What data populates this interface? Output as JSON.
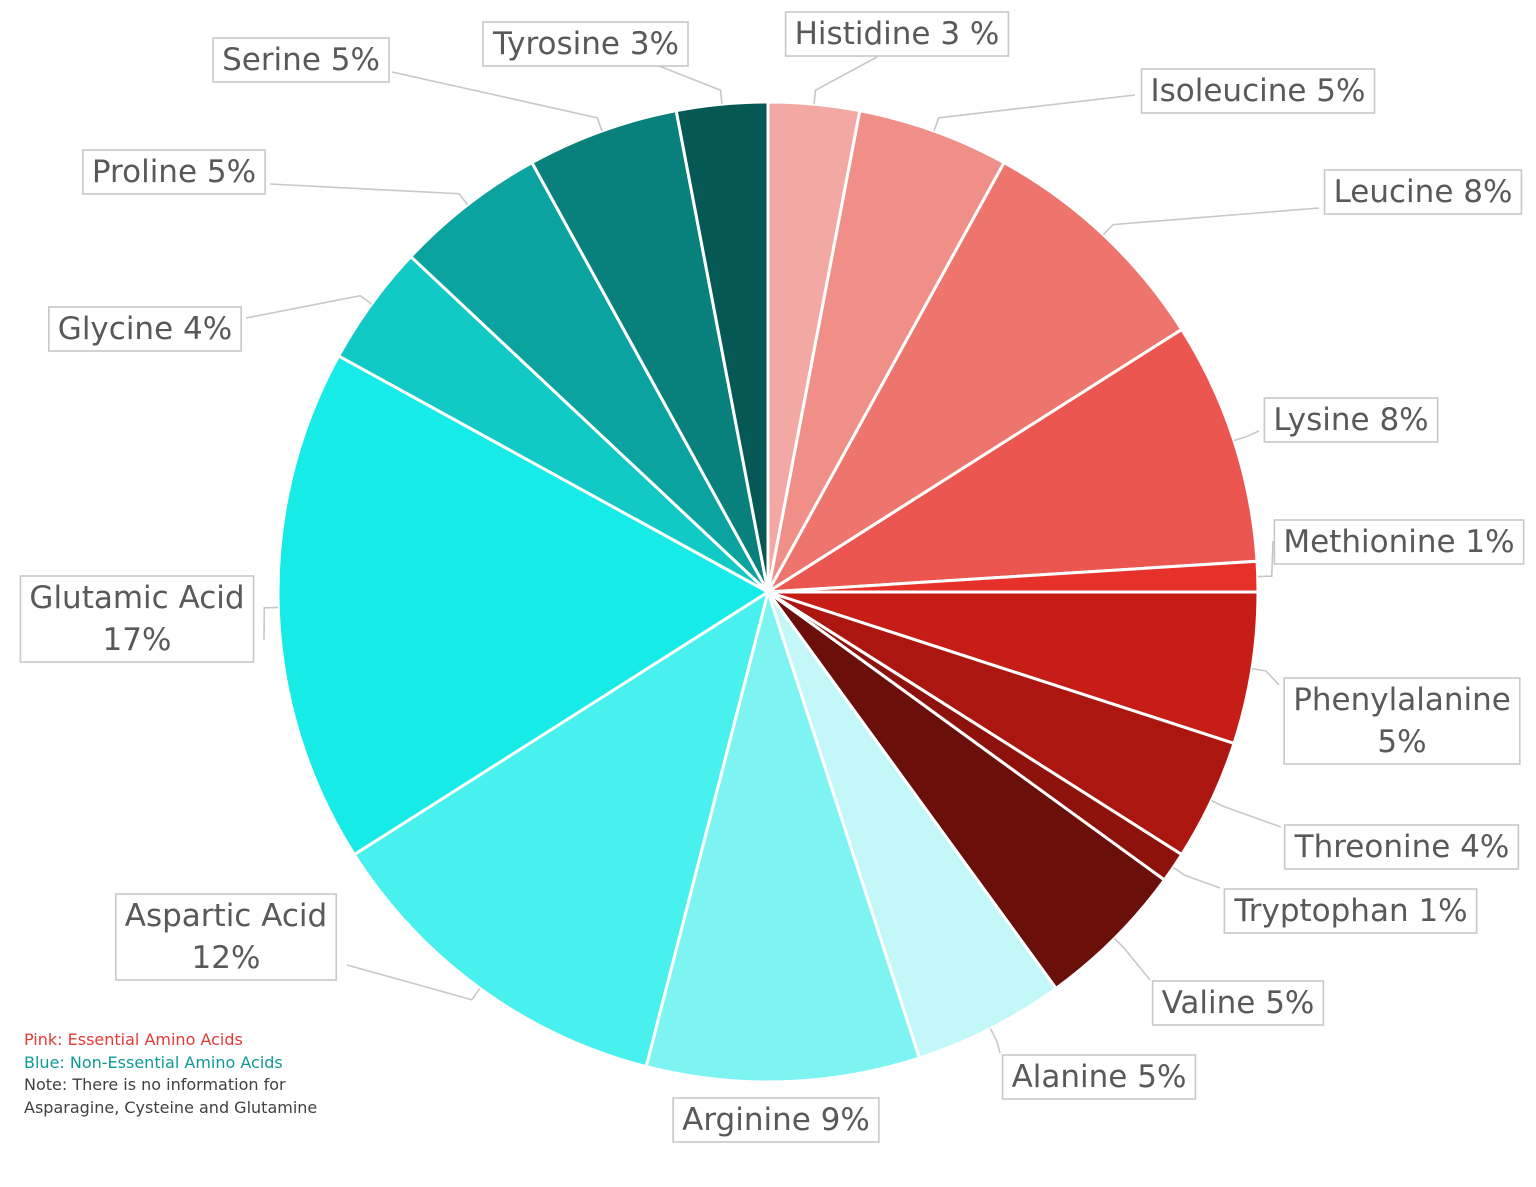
{
  "chart_data": {
    "type": "pie",
    "title": "",
    "slices": [
      {
        "label": "Histidine 3 %",
        "name": "Histidine",
        "value": 3,
        "color": "#f4a8a4"
      },
      {
        "label": "Isoleucine 5%",
        "name": "Isoleucine",
        "value": 5,
        "color": "#f08e88"
      },
      {
        "label": "Leucine 8%",
        "name": "Leucine",
        "value": 8,
        "color": "#ed756d"
      },
      {
        "label": "Lysine 8%",
        "name": "Lysine",
        "value": 8,
        "color": "#eb5650"
      },
      {
        "label": "Methionine 1%",
        "name": "Methionine",
        "value": 1,
        "color": "#e6302a"
      },
      {
        "label": "Phenylalanine\n5%",
        "name": "Phenylalanine",
        "value": 5,
        "color": "#c61e16"
      },
      {
        "label": "Threonine 4%",
        "name": "Threonine",
        "value": 4,
        "color": "#ab1710"
      },
      {
        "label": "Tryptophan 1%",
        "name": "Tryptophan",
        "value": 1,
        "color": "#8e120c"
      },
      {
        "label": "Valine 5%",
        "name": "Valine",
        "value": 5,
        "color": "#6b0f0b"
      },
      {
        "label": "Alanine 5%",
        "name": "Alanine",
        "value": 5,
        "color": "#c4f8f8"
      },
      {
        "label": "Arginine 9%",
        "name": "Arginine",
        "value": 9,
        "color": "#7ef4f2"
      },
      {
        "label": "Aspartic Acid\n12%",
        "name": "Aspartic Acid",
        "value": 12,
        "color": "#48f0ee"
      },
      {
        "label": "Glutamic Acid\n17%",
        "name": "Glutamic Acid",
        "value": 17,
        "color": "#17ebe7"
      },
      {
        "label": "Glycine 4%",
        "name": "Glycine",
        "value": 4,
        "color": "#11c9c5"
      },
      {
        "label": "Proline 5%",
        "name": "Proline",
        "value": 5,
        "color": "#0ba3a0"
      },
      {
        "label": "Serine 5%",
        "name": "Serine",
        "value": 5,
        "color": "#08807c"
      },
      {
        "label": "Tyrosine 3%",
        "name": "Tyrosine",
        "value": 3,
        "color": "#055853"
      }
    ],
    "notes": [
      {
        "text": "Pink: Essential Amino Acids",
        "color": "#e63a34"
      },
      {
        "text": "Blue: Non-Essential Amino Acids",
        "color": "#0e9a96"
      },
      {
        "text": "Note: There is no information for Asparagine, Cysteine and Glutamine",
        "color": "#404040"
      }
    ]
  }
}
